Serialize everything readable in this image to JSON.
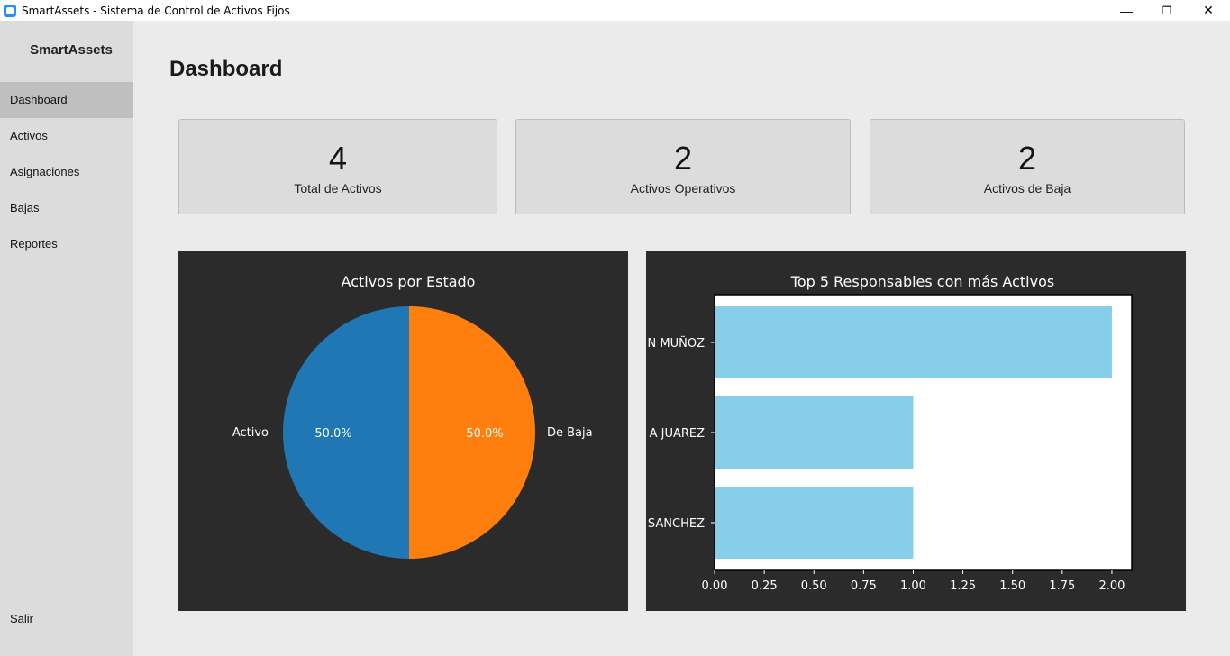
{
  "window": {
    "title": "SmartAssets - Sistema de Control de Activos Fijos",
    "minimize": "—",
    "restore": "❐",
    "close": "✕"
  },
  "sidebar": {
    "brand": "SmartAssets",
    "items": [
      {
        "label": "Dashboard",
        "active": true
      },
      {
        "label": "Activos"
      },
      {
        "label": "Asignaciones"
      },
      {
        "label": "Bajas"
      },
      {
        "label": "Reportes"
      }
    ],
    "exit": "Salir"
  },
  "page": {
    "title": "Dashboard"
  },
  "cards": [
    {
      "value": "4",
      "label": "Total de Activos"
    },
    {
      "value": "2",
      "label": "Activos Operativos"
    },
    {
      "value": "2",
      "label": "Activos de Baja"
    }
  ],
  "chart_data": [
    {
      "type": "pie",
      "title": "Activos por Estado",
      "categories": [
        "Activo",
        "De Baja"
      ],
      "values": [
        50,
        50
      ],
      "labels": [
        "50.0%",
        "50.0%"
      ],
      "colors": [
        "#1f77b4",
        "#ff7f0e"
      ]
    },
    {
      "type": "bar",
      "orientation": "horizontal",
      "title": "Top 5 Responsables con más Activos",
      "categories": [
        "N MUÑOZ",
        "A JUAREZ",
        "SANCHEZ"
      ],
      "values": [
        2,
        1,
        1
      ],
      "color": "#87ceeb",
      "xlim": [
        0,
        2.1
      ],
      "xticks": [
        "0.00",
        "0.25",
        "0.50",
        "0.75",
        "1.00",
        "1.25",
        "1.50",
        "1.75",
        "2.00"
      ]
    }
  ]
}
